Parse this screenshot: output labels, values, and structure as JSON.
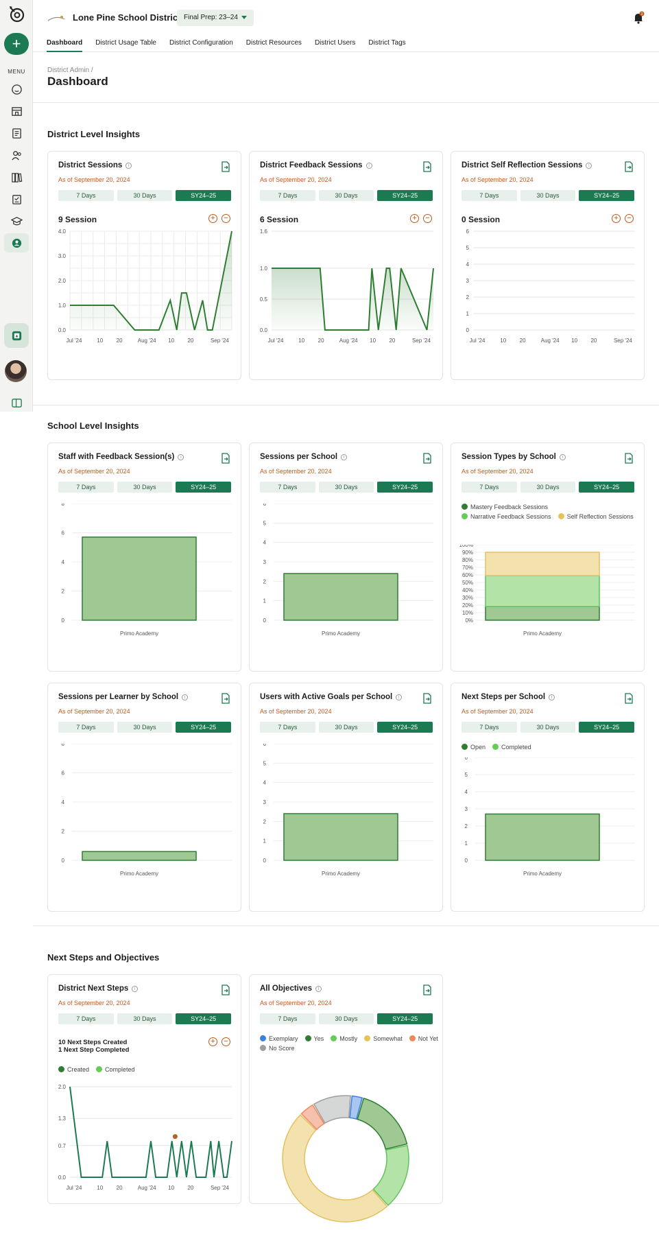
{
  "header": {
    "district_name": "Lone Pine School District",
    "period": "Final Prep: 23–24",
    "notification_count": "3"
  },
  "sidebar": {
    "menu_label": "MENU"
  },
  "tabs": [
    "Dashboard",
    "District Usage Table",
    "District Configuration",
    "District Resources",
    "District Users",
    "District Tags"
  ],
  "breadcrumb": "District Admin /",
  "page_title": "Dashboard",
  "sections": {
    "district": "District Level Insights",
    "school": "School Level Insights",
    "next": "Next Steps and Objectives"
  },
  "ranges": [
    "7 Days",
    "30 Days",
    "SY24–25"
  ],
  "as_of": "As of September 20, 2024",
  "colors": {
    "accent": "#1c7a52",
    "date": "#c0591b",
    "bar_fill": "#a0c892",
    "bar_stroke": "#2e7d32"
  },
  "cards": {
    "district_sessions": {
      "title": "District Sessions",
      "count": "9 Session"
    },
    "district_feedback": {
      "title": "District Feedback Sessions",
      "count": "6 Session"
    },
    "district_reflection": {
      "title": "District Self Reflection Sessions",
      "count": "0 Session"
    },
    "staff_feedback": {
      "title": "Staff with Feedback Session(s)"
    },
    "sessions_per_school": {
      "title": "Sessions per School"
    },
    "session_types": {
      "title": "Session Types by School"
    },
    "sessions_per_learner": {
      "title": "Sessions per Learner by School"
    },
    "users_goals": {
      "title": "Users with Active Goals per School"
    },
    "next_steps_school": {
      "title": "Next Steps per School"
    },
    "district_next_steps": {
      "title": "District Next Steps",
      "created_text": "10 Next Steps Created",
      "completed_text": "1 Next Step Completed"
    },
    "all_objectives": {
      "title": "All Objectives"
    }
  },
  "chart_data": [
    {
      "id": "district_sessions",
      "type": "line",
      "x_ticks": [
        "Jul '24",
        "10",
        "20",
        "Aug '24",
        "10",
        "20",
        "Sep '24"
      ],
      "y_ticks": [
        "0.0",
        "1.0",
        "2.0",
        "3.0",
        "4.0"
      ],
      "ylim": [
        0,
        4
      ],
      "grid": true,
      "x": [
        0,
        0.2,
        0.27,
        0.4,
        0.5,
        0.55,
        0.62,
        0.66,
        0.69,
        0.72,
        0.77,
        0.82,
        0.85,
        0.88,
        1.0
      ],
      "values": [
        1,
        1,
        1,
        0,
        0,
        0,
        1.2,
        0,
        1.5,
        1.5,
        0,
        1.2,
        0,
        0,
        4
      ]
    },
    {
      "id": "district_feedback",
      "type": "line",
      "x_ticks": [
        "Jul '24",
        "10",
        "20",
        "Aug '24",
        "10",
        "20",
        "Sep '24"
      ],
      "y_ticks": [
        "0.0",
        "0.5",
        "1.0",
        "1.6"
      ],
      "ylim": [
        0,
        1.6
      ],
      "grid": false,
      "x": [
        0,
        0.3,
        0.33,
        0.6,
        0.62,
        0.66,
        0.71,
        0.73,
        0.77,
        0.8,
        0.96,
        1.0
      ],
      "values": [
        1,
        1,
        0,
        0,
        1,
        0,
        1,
        1,
        0,
        1,
        0,
        1
      ]
    },
    {
      "id": "district_reflection",
      "type": "line",
      "x_ticks": [
        "Jul '24",
        "10",
        "20",
        "Aug '24",
        "10",
        "20",
        "Sep '24"
      ],
      "y_ticks": [
        "0",
        "1",
        "2",
        "3",
        "4",
        "5",
        "6"
      ],
      "ylim": [
        0,
        6
      ],
      "grid": false,
      "x": [],
      "values": []
    },
    {
      "id": "staff_feedback",
      "type": "bar",
      "categories": [
        "Primo Academy"
      ],
      "values": [
        5.7
      ],
      "y_ticks": [
        "0",
        "2",
        "4",
        "6",
        "8"
      ],
      "ylim": [
        0,
        8
      ]
    },
    {
      "id": "sessions_per_school",
      "type": "bar",
      "categories": [
        "Primo Academy"
      ],
      "values": [
        2.4
      ],
      "y_ticks": [
        "0",
        "1",
        "2",
        "3",
        "4",
        "5",
        "6"
      ],
      "ylim": [
        0,
        6
      ]
    },
    {
      "id": "session_types",
      "type": "stacked_bar",
      "categories": [
        "Primo Academy"
      ],
      "y_ticks": [
        "0%",
        "10%",
        "20%",
        "30%",
        "40%",
        "50%",
        "60%",
        "70%",
        "80%",
        "90%",
        "100%"
      ],
      "ylim": [
        0,
        100
      ],
      "series": [
        {
          "name": "Mastery Feedback Sessions",
          "values": [
            18
          ],
          "color": "#a0c892",
          "stroke": "#2e7d32",
          "dot": "#2e7d32"
        },
        {
          "name": "Narrative Feedback Sessions",
          "values": [
            41
          ],
          "color": "#b4e3a8",
          "stroke": "#5fc45a",
          "dot": "#66cc55"
        },
        {
          "name": "Self Reflection Sessions",
          "values": [
            31
          ],
          "color": "#f3e2ad",
          "stroke": "#e2c163",
          "dot": "#e6c35a"
        }
      ]
    },
    {
      "id": "sessions_per_learner",
      "type": "bar",
      "categories": [
        "Primo Academy"
      ],
      "values": [
        0.6
      ],
      "y_ticks": [
        "0",
        "2",
        "4",
        "6",
        "8"
      ],
      "ylim": [
        0,
        8
      ]
    },
    {
      "id": "users_goals",
      "type": "bar",
      "categories": [
        "Primo Academy"
      ],
      "values": [
        2.4
      ],
      "y_ticks": [
        "0",
        "1",
        "2",
        "3",
        "4",
        "5",
        "6"
      ],
      "ylim": [
        0,
        6
      ]
    },
    {
      "id": "next_steps_school",
      "type": "bar",
      "categories": [
        "Primo Academy"
      ],
      "values": [
        2.7
      ],
      "y_ticks": [
        "0",
        "1",
        "2",
        "3",
        "4",
        "5",
        "6"
      ],
      "ylim": [
        0,
        6
      ],
      "legend": [
        {
          "name": "Open",
          "color": "#2e7d32"
        },
        {
          "name": "Completed",
          "color": "#66cc55"
        }
      ]
    },
    {
      "id": "district_next_steps",
      "type": "line",
      "x_ticks": [
        "Jul '24",
        "10",
        "20",
        "Aug '24",
        "10",
        "20",
        "Sep '24"
      ],
      "y_ticks": [
        "0.0",
        "0.7",
        "1.3",
        "2.0"
      ],
      "ylim": [
        0,
        2
      ],
      "grid": false,
      "legend": [
        {
          "name": "Created",
          "color": "#2e7d32"
        },
        {
          "name": "Completed",
          "color": "#66cc55"
        }
      ],
      "x": [
        0,
        0.07,
        0.2,
        0.23,
        0.26,
        0.47,
        0.5,
        0.53,
        0.6,
        0.63,
        0.66,
        0.69,
        0.72,
        0.75,
        0.78,
        0.84,
        0.87,
        0.89,
        0.92,
        0.95,
        0.97,
        1.0
      ],
      "values": [
        2,
        0,
        0,
        0.8,
        0,
        0,
        0.8,
        0,
        0,
        0.8,
        0,
        0.8,
        0,
        0.8,
        0,
        0,
        0.8,
        0,
        0.8,
        0,
        0,
        0.8
      ],
      "completed_point": {
        "x": 0.65,
        "value": 0.9
      }
    },
    {
      "id": "all_objectives",
      "type": "pie",
      "donut": true,
      "legend": [
        {
          "name": "Exemplary",
          "color": "#3b7fe0"
        },
        {
          "name": "Yes",
          "color": "#2e7d32"
        },
        {
          "name": "Mostly",
          "color": "#66cc55"
        },
        {
          "name": "Somewhat",
          "color": "#e6c35a"
        },
        {
          "name": "Not Yet",
          "color": "#ee8a5a"
        },
        {
          "name": "No Score",
          "color": "#9e9e9e"
        }
      ],
      "slices": [
        {
          "name": "Exemplary",
          "value": 3,
          "fill": "#a7c7f0",
          "stroke": "#3b7fe0"
        },
        {
          "name": "Yes",
          "value": 17,
          "fill": "#a0c892",
          "stroke": "#2e7d32"
        },
        {
          "name": "Mostly",
          "value": 17,
          "fill": "#b4e3a8",
          "stroke": "#5fc45a"
        },
        {
          "name": "Somewhat",
          "value": 49,
          "fill": "#f3e2ad",
          "stroke": "#e2c163"
        },
        {
          "name": "Not Yet",
          "value": 4,
          "fill": "#f5c1ad",
          "stroke": "#ee8a5a"
        },
        {
          "name": "No Score",
          "value": 10,
          "fill": "#d4d7d5",
          "stroke": "#9e9e9e"
        }
      ]
    }
  ]
}
